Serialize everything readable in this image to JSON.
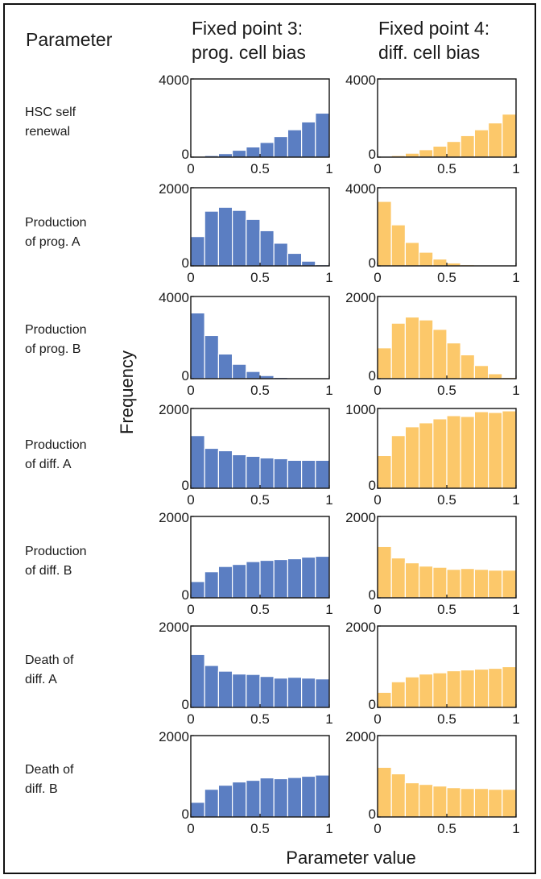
{
  "header": {
    "parameter": "Parameter",
    "col1": [
      "Fixed point 3:",
      "prog. cell bias"
    ],
    "col2": [
      "Fixed point 4:",
      "diff. cell bias"
    ]
  },
  "rows": [
    {
      "label": [
        "HSC self",
        "renewal"
      ]
    },
    {
      "label": [
        "Production",
        "of prog. A"
      ]
    },
    {
      "label": [
        "Production",
        "of prog. B"
      ]
    },
    {
      "label": [
        "Production",
        "of diff. A"
      ]
    },
    {
      "label": [
        "Production",
        "of diff. B"
      ]
    },
    {
      "label": [
        "Death of",
        "diff. A"
      ]
    },
    {
      "label": [
        "Death of",
        "diff. B"
      ]
    }
  ],
  "ylabel": "Frequency",
  "xlabel": "Parameter value",
  "colors": {
    "fp3": "#5b7ec2",
    "fp4": "#fcc86a"
  },
  "chart_data": [
    {
      "type": "bar",
      "row": "HSC self renewal",
      "column": "Fixed point 3: prog. cell bias",
      "xlim": [
        0,
        1
      ],
      "ylim": [
        0,
        4000
      ],
      "yticks": [
        0,
        4000
      ],
      "xticks": [
        0,
        0.5,
        1
      ],
      "bins": [
        0.05,
        0.15,
        0.25,
        0.35,
        0.45,
        0.55,
        0.65,
        0.75,
        0.85,
        0.95
      ],
      "values": [
        20,
        80,
        180,
        350,
        520,
        750,
        1050,
        1400,
        1800,
        2250
      ]
    },
    {
      "type": "bar",
      "row": "HSC self renewal",
      "column": "Fixed point 4: diff. cell bias",
      "xlim": [
        0,
        1
      ],
      "ylim": [
        0,
        4000
      ],
      "yticks": [
        0,
        4000
      ],
      "xticks": [
        0,
        0.5,
        1
      ],
      "bins": [
        0.05,
        0.15,
        0.25,
        0.35,
        0.45,
        0.55,
        0.65,
        0.75,
        0.85,
        0.95
      ],
      "values": [
        20,
        80,
        200,
        380,
        560,
        800,
        1100,
        1400,
        1750,
        2200
      ]
    },
    {
      "type": "bar",
      "row": "Production of prog. A",
      "column": "Fixed point 3: prog. cell bias",
      "xlim": [
        0,
        1
      ],
      "ylim": [
        0,
        2000
      ],
      "yticks": [
        0,
        2000
      ],
      "xticks": [
        0,
        0.5,
        1
      ],
      "bins": [
        0.05,
        0.15,
        0.25,
        0.35,
        0.45,
        0.55,
        0.65,
        0.75,
        0.85,
        0.95
      ],
      "values": [
        750,
        1400,
        1500,
        1420,
        1190,
        900,
        580,
        320,
        120,
        30
      ]
    },
    {
      "type": "bar",
      "row": "Production of prog. A",
      "column": "Fixed point 4: diff. cell bias",
      "xlim": [
        0,
        1
      ],
      "ylim": [
        0,
        4000
      ],
      "yticks": [
        0,
        4000
      ],
      "xticks": [
        0,
        0.5,
        1
      ],
      "bins": [
        0.05,
        0.15,
        0.25,
        0.35,
        0.45,
        0.55,
        0.65,
        0.75,
        0.85,
        0.95
      ],
      "values": [
        3300,
        2100,
        1200,
        700,
        350,
        150,
        60,
        20,
        10,
        5
      ]
    },
    {
      "type": "bar",
      "row": "Production of prog. B",
      "column": "Fixed point 3: prog. cell bias",
      "xlim": [
        0,
        1
      ],
      "ylim": [
        0,
        4000
      ],
      "yticks": [
        0,
        4000
      ],
      "xticks": [
        0,
        0.5,
        1
      ],
      "bins": [
        0.05,
        0.15,
        0.25,
        0.35,
        0.45,
        0.55,
        0.65,
        0.75,
        0.85,
        0.95
      ],
      "values": [
        3200,
        2100,
        1200,
        700,
        350,
        150,
        60,
        20,
        10,
        5
      ]
    },
    {
      "type": "bar",
      "row": "Production of prog. B",
      "column": "Fixed point 4: diff. cell bias",
      "xlim": [
        0,
        1
      ],
      "ylim": [
        0,
        2000
      ],
      "yticks": [
        0,
        2000
      ],
      "xticks": [
        0,
        0.5,
        1
      ],
      "bins": [
        0.05,
        0.15,
        0.25,
        0.35,
        0.45,
        0.55,
        0.65,
        0.75,
        0.85,
        0.95
      ],
      "values": [
        750,
        1350,
        1500,
        1430,
        1200,
        870,
        580,
        320,
        120,
        30
      ]
    },
    {
      "type": "bar",
      "row": "Production of diff. A",
      "column": "Fixed point 3: prog. cell bias",
      "xlim": [
        0,
        1
      ],
      "ylim": [
        0,
        2000
      ],
      "yticks": [
        0,
        2000
      ],
      "xticks": [
        0,
        0.5,
        1
      ],
      "bins": [
        0.05,
        0.15,
        0.25,
        0.35,
        0.45,
        0.55,
        0.65,
        0.75,
        0.85,
        0.95
      ],
      "values": [
        1320,
        1000,
        940,
        840,
        800,
        760,
        740,
        700,
        700,
        700
      ]
    },
    {
      "type": "bar",
      "row": "Production of diff. A",
      "column": "Fixed point 4: diff. cell bias",
      "xlim": [
        0,
        1
      ],
      "ylim": [
        0,
        1000
      ],
      "yticks": [
        0,
        1000
      ],
      "xticks": [
        0,
        0.5,
        1
      ],
      "bins": [
        0.05,
        0.15,
        0.25,
        0.35,
        0.45,
        0.55,
        0.65,
        0.75,
        0.85,
        0.95
      ],
      "values": [
        410,
        660,
        770,
        820,
        870,
        910,
        900,
        960,
        950,
        970
      ]
    },
    {
      "type": "bar",
      "row": "Production of diff. B",
      "column": "Fixed point 3: prog. cell bias",
      "xlim": [
        0,
        1
      ],
      "ylim": [
        0,
        2000
      ],
      "yticks": [
        0,
        2000
      ],
      "xticks": [
        0,
        0.5,
        1
      ],
      "bins": [
        0.05,
        0.15,
        0.25,
        0.35,
        0.45,
        0.55,
        0.65,
        0.75,
        0.85,
        0.95
      ],
      "values": [
        400,
        640,
        770,
        820,
        890,
        920,
        940,
        960,
        1000,
        1020
      ]
    },
    {
      "type": "bar",
      "row": "Production of diff. B",
      "column": "Fixed point 4: diff. cell bias",
      "xlim": [
        0,
        1
      ],
      "ylim": [
        0,
        2000
      ],
      "yticks": [
        0,
        2000
      ],
      "xticks": [
        0,
        0.5,
        1
      ],
      "bins": [
        0.05,
        0.15,
        0.25,
        0.35,
        0.45,
        0.55,
        0.65,
        0.75,
        0.85,
        0.95
      ],
      "values": [
        1260,
        980,
        860,
        780,
        750,
        700,
        720,
        700,
        680,
        680
      ]
    },
    {
      "type": "bar",
      "row": "Death of diff. A",
      "column": "Fixed point 3: prog. cell bias",
      "xlim": [
        0,
        1
      ],
      "ylim": [
        0,
        2000
      ],
      "yticks": [
        0,
        2000
      ],
      "xticks": [
        0,
        0.5,
        1
      ],
      "bins": [
        0.05,
        0.15,
        0.25,
        0.35,
        0.45,
        0.55,
        0.65,
        0.75,
        0.85,
        0.95
      ],
      "values": [
        1300,
        1030,
        890,
        820,
        810,
        760,
        720,
        740,
        720,
        700
      ]
    },
    {
      "type": "bar",
      "row": "Death of diff. A",
      "column": "Fixed point 4: diff. cell bias",
      "xlim": [
        0,
        1
      ],
      "ylim": [
        0,
        2000
      ],
      "yticks": [
        0,
        2000
      ],
      "xticks": [
        0,
        0.5,
        1
      ],
      "bins": [
        0.05,
        0.15,
        0.25,
        0.35,
        0.45,
        0.55,
        0.65,
        0.75,
        0.85,
        0.95
      ],
      "values": [
        370,
        630,
        750,
        820,
        850,
        900,
        920,
        940,
        960,
        1000
      ]
    },
    {
      "type": "bar",
      "row": "Death of diff. B",
      "column": "Fixed point 3: prog. cell bias",
      "xlim": [
        0,
        1
      ],
      "ylim": [
        0,
        2000
      ],
      "yticks": [
        0,
        2000
      ],
      "xticks": [
        0,
        0.5,
        1
      ],
      "bins": [
        0.05,
        0.15,
        0.25,
        0.35,
        0.45,
        0.55,
        0.65,
        0.75,
        0.85,
        0.95
      ],
      "values": [
        360,
        680,
        780,
        860,
        900,
        960,
        940,
        970,
        1000,
        1030
      ]
    },
    {
      "type": "bar",
      "row": "Death of diff. B",
      "column": "Fixed point 4: diff. cell bias",
      "xlim": [
        0,
        1
      ],
      "ylim": [
        0,
        2000
      ],
      "yticks": [
        0,
        2000
      ],
      "xticks": [
        0,
        0.5,
        1
      ],
      "bins": [
        0.05,
        0.15,
        0.25,
        0.35,
        0.45,
        0.55,
        0.65,
        0.75,
        0.85,
        0.95
      ],
      "values": [
        1220,
        1060,
        840,
        800,
        760,
        720,
        700,
        700,
        680,
        680
      ]
    }
  ]
}
